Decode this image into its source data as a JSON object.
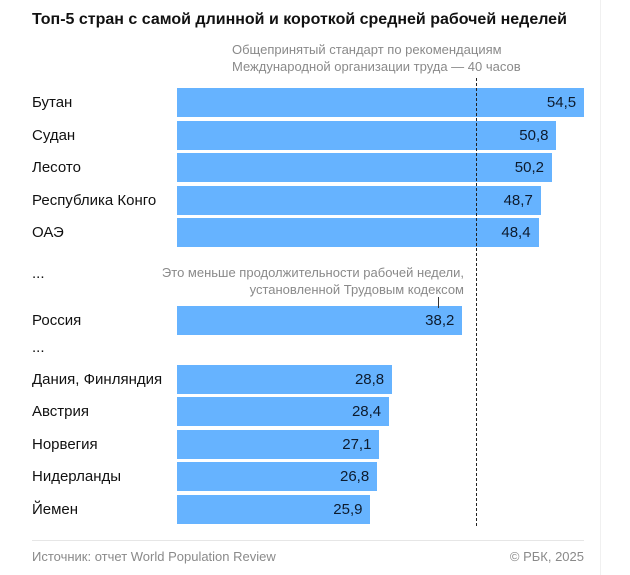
{
  "chart_data": {
    "type": "bar",
    "orientation": "horizontal",
    "title": "Топ-5 стран с самой длинной и короткой средней рабочей неделей",
    "categories": [
      "Бутан",
      "Судан",
      "Лесото",
      "Республика Конго",
      "ОАЭ",
      "Россия",
      "Дания, Финляндия",
      "Австрия",
      "Норвегия",
      "Нидерланды",
      "Йемен"
    ],
    "values": [
      54.5,
      50.8,
      50.2,
      48.7,
      48.4,
      38.2,
      28.8,
      28.4,
      27.1,
      26.8,
      25.9
    ],
    "value_labels": [
      "54,5",
      "50,8",
      "50,2",
      "48,7",
      "48,4",
      "38,2",
      "28,8",
      "28,4",
      "27,1",
      "26,8",
      "25,9"
    ],
    "reference_line": {
      "value": 40,
      "label": "Общепринятый стандарт по рекомендациям Международной организации труда — 40 часов",
      "label_lines": [
        "Общепринятый стандарт по рекомендациям",
        "Международной организации труда — 40 часов"
      ],
      "style": "dashed"
    },
    "annotation": {
      "target": "Россия",
      "lines": [
        "Это меньше продолжительности рабочей недели,",
        "установленной Трудовым кодексом"
      ]
    },
    "ellipsis": "...",
    "bar_color": "#66b3ff",
    "grid": false
  },
  "footer": {
    "source": "Источник: отчет World Population Review",
    "copyright": "© РБК, 2025"
  }
}
